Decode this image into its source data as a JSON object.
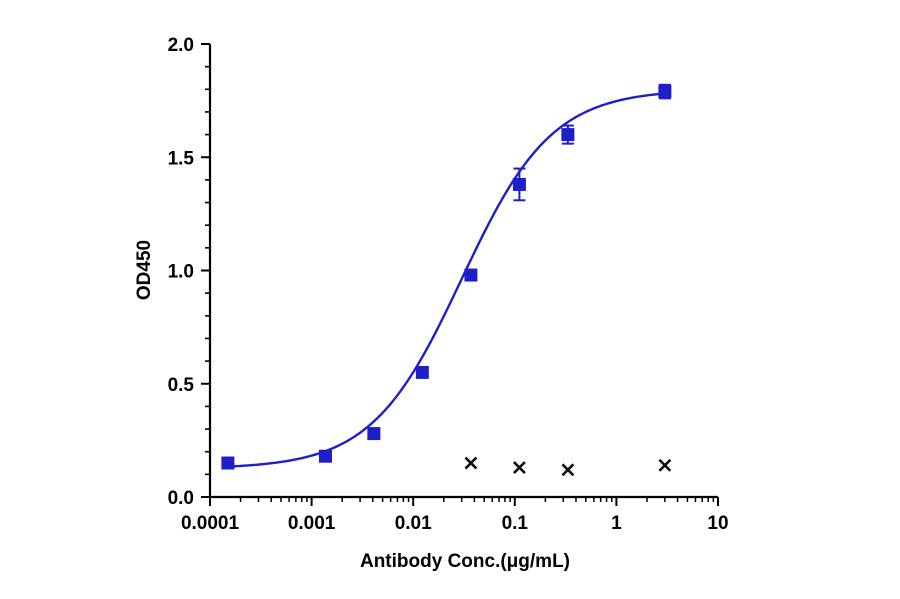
{
  "chart_data": {
    "type": "scatter",
    "xscale": "log",
    "xlabel": "Antibody Conc.(μg/mL)",
    "ylabel": "OD450",
    "xlim": [
      0.0001,
      10
    ],
    "ylim": [
      0,
      2.0
    ],
    "xticks": [
      {
        "value": 0.0001,
        "label": "0.0001"
      },
      {
        "value": 0.001,
        "label": "0.001"
      },
      {
        "value": 0.01,
        "label": "0.01"
      },
      {
        "value": 0.1,
        "label": "0.1"
      },
      {
        "value": 1,
        "label": "1"
      },
      {
        "value": 10,
        "label": "10"
      }
    ],
    "yticks": [
      {
        "value": 0.0,
        "label": "0.0"
      },
      {
        "value": 0.5,
        "label": "0.5"
      },
      {
        "value": 1.0,
        "label": "1.0"
      },
      {
        "value": 1.5,
        "label": "1.5"
      },
      {
        "value": 2.0,
        "label": "2.0"
      }
    ],
    "grid": false,
    "legend": "none",
    "series": [
      {
        "marker": "square",
        "color": "#1f1fc8",
        "fit": "four-parameter logistic",
        "points": [
          {
            "x": 0.00015,
            "y": 0.15,
            "err": 0.01
          },
          {
            "x": 0.00137,
            "y": 0.18,
            "err": 0.01
          },
          {
            "x": 0.0041,
            "y": 0.28,
            "err": 0.01
          },
          {
            "x": 0.0123,
            "y": 0.55,
            "err": 0.01
          },
          {
            "x": 0.037,
            "y": 0.98,
            "err": 0.01
          },
          {
            "x": 0.111,
            "y": 1.38,
            "err": 0.07
          },
          {
            "x": 0.333,
            "y": 1.6,
            "err": 0.04
          },
          {
            "x": 3.0,
            "y": 1.79,
            "err": 0.03
          }
        ]
      },
      {
        "marker": "x",
        "color": "#111111",
        "points": [
          {
            "x": 0.037,
            "y": 0.15
          },
          {
            "x": 0.111,
            "y": 0.13
          },
          {
            "x": 0.333,
            "y": 0.12
          },
          {
            "x": 3.0,
            "y": 0.14
          }
        ]
      }
    ]
  }
}
